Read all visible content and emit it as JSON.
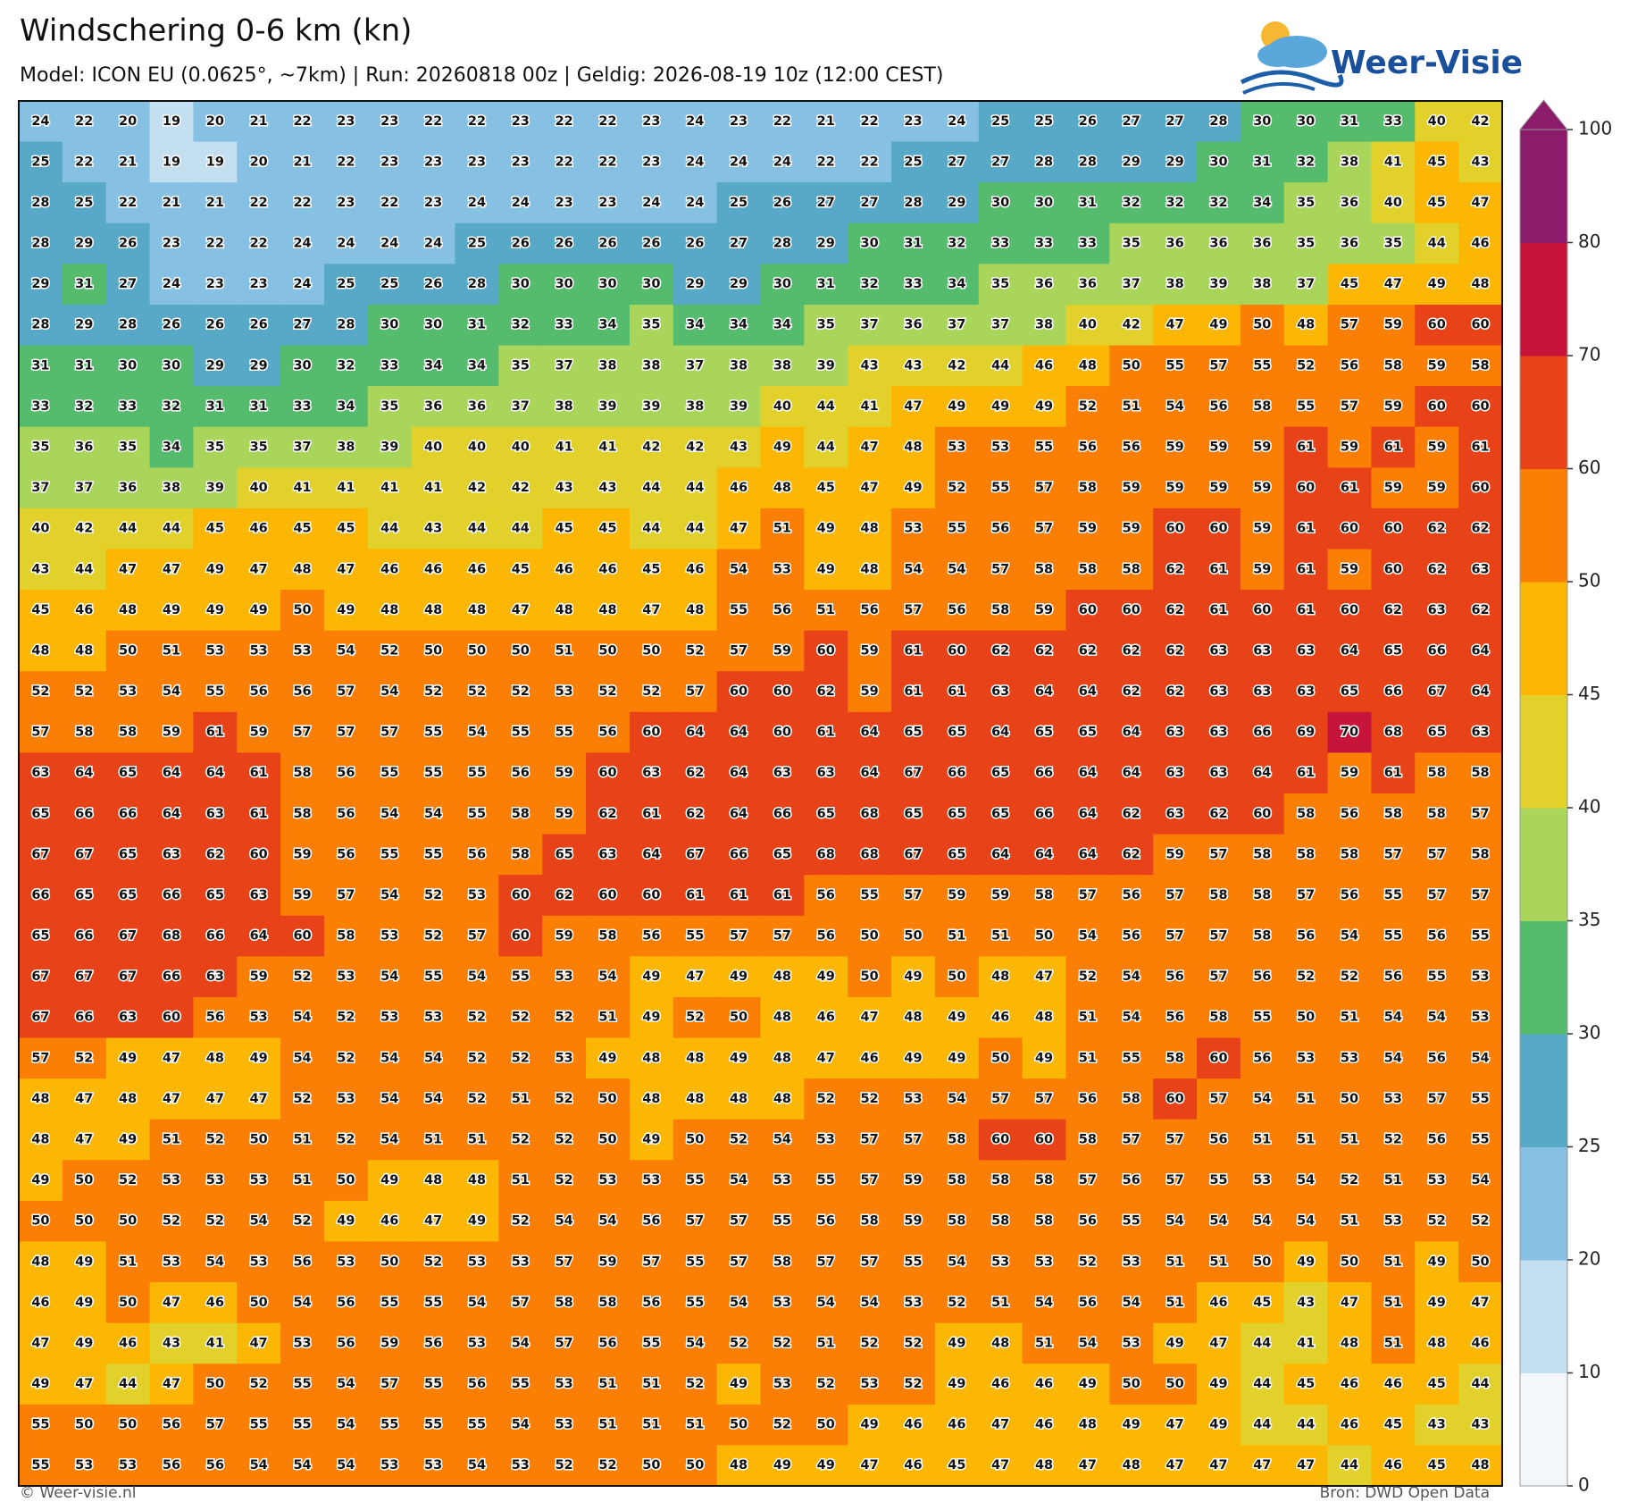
{
  "title": "Windschering 0-6 km (kn)",
  "subtitle": "Model: ICON EU (0.0625°, ~7km)  |  Run: 20260818 00z  |  Geldig: 2026-08-19 10z (12:00 CEST)",
  "logo": "Weer-Visie",
  "footer_left": "© Weer-visie.nl",
  "footer_right": "Bron: DWD Open Data",
  "colorbar": {
    "ticks": [
      0,
      10,
      20,
      25,
      30,
      35,
      40,
      45,
      50,
      60,
      70,
      80,
      100
    ],
    "colors": [
      "#f3f6fa",
      "#c4e0f0",
      "#86c1e4",
      "#58a8c8",
      "#55bc6e",
      "#a9d55b",
      "#e3d12b",
      "#fbb703",
      "#fb7e05",
      "#e84218",
      "#c7143b",
      "#8b1b6b"
    ]
  },
  "grid": [
    [
      24,
      22,
      20,
      19,
      20,
      21,
      22,
      23,
      23,
      22,
      22,
      23,
      22,
      22,
      23,
      24,
      23,
      22,
      21,
      22,
      23,
      24,
      25,
      25,
      26,
      27,
      27,
      28,
      30,
      30,
      31,
      33,
      40,
      42
    ],
    [
      25,
      22,
      21,
      19,
      19,
      20,
      21,
      22,
      23,
      23,
      23,
      23,
      22,
      22,
      23,
      24,
      24,
      24,
      22,
      22,
      25,
      27,
      27,
      28,
      28,
      29,
      29,
      30,
      31,
      32,
      38,
      41,
      45,
      43
    ],
    [
      28,
      25,
      22,
      21,
      21,
      22,
      22,
      23,
      22,
      23,
      24,
      24,
      23,
      23,
      24,
      24,
      25,
      26,
      27,
      27,
      28,
      29,
      30,
      30,
      31,
      32,
      32,
      32,
      34,
      35,
      36,
      40,
      45,
      47
    ],
    [
      28,
      29,
      26,
      23,
      22,
      22,
      24,
      24,
      24,
      24,
      25,
      26,
      26,
      26,
      26,
      26,
      27,
      28,
      29,
      30,
      31,
      32,
      33,
      33,
      33,
      35,
      36,
      36,
      36,
      35,
      36,
      35,
      44,
      46
    ],
    [
      29,
      31,
      27,
      24,
      23,
      23,
      24,
      25,
      25,
      26,
      28,
      30,
      30,
      30,
      30,
      29,
      29,
      30,
      31,
      32,
      33,
      34,
      35,
      36,
      36,
      37,
      38,
      39,
      38,
      37,
      45,
      47,
      49,
      48
    ],
    [
      28,
      29,
      28,
      26,
      26,
      26,
      27,
      28,
      30,
      30,
      31,
      32,
      33,
      34,
      35,
      34,
      34,
      34,
      35,
      37,
      36,
      37,
      37,
      38,
      40,
      42,
      47,
      49,
      50,
      48,
      57,
      59,
      60,
      60
    ],
    [
      31,
      31,
      30,
      30,
      29,
      29,
      30,
      32,
      33,
      34,
      34,
      35,
      37,
      38,
      38,
      37,
      38,
      38,
      39,
      43,
      43,
      42,
      44,
      46,
      48,
      50,
      55,
      57,
      55,
      52,
      56,
      58,
      59,
      58
    ],
    [
      33,
      32,
      33,
      32,
      31,
      31,
      33,
      34,
      35,
      36,
      36,
      37,
      38,
      39,
      39,
      38,
      39,
      40,
      44,
      41,
      47,
      49,
      49,
      49,
      52,
      51,
      54,
      56,
      58,
      55,
      57,
      59,
      60,
      60
    ],
    [
      35,
      36,
      35,
      34,
      35,
      35,
      37,
      38,
      39,
      40,
      40,
      40,
      41,
      41,
      42,
      42,
      43,
      49,
      44,
      47,
      48,
      53,
      53,
      55,
      56,
      56,
      59,
      59,
      59,
      61,
      59,
      61,
      59,
      61
    ],
    [
      37,
      37,
      36,
      38,
      39,
      40,
      41,
      41,
      41,
      41,
      42,
      42,
      43,
      43,
      44,
      44,
      46,
      48,
      45,
      47,
      49,
      52,
      55,
      57,
      58,
      59,
      59,
      59,
      59,
      60,
      61,
      59,
      59,
      60
    ],
    [
      40,
      42,
      44,
      44,
      45,
      46,
      45,
      45,
      44,
      43,
      44,
      44,
      45,
      45,
      44,
      44,
      47,
      51,
      49,
      48,
      53,
      55,
      56,
      57,
      59,
      59,
      60,
      60,
      59,
      61,
      60,
      60,
      62,
      62
    ],
    [
      43,
      44,
      47,
      47,
      49,
      47,
      48,
      47,
      46,
      46,
      46,
      45,
      46,
      46,
      45,
      46,
      54,
      53,
      49,
      48,
      54,
      54,
      57,
      58,
      58,
      58,
      62,
      61,
      59,
      61,
      59,
      60,
      62,
      63
    ],
    [
      45,
      46,
      48,
      49,
      49,
      49,
      50,
      49,
      48,
      48,
      48,
      47,
      48,
      48,
      47,
      48,
      55,
      56,
      51,
      56,
      57,
      56,
      58,
      59,
      60,
      60,
      62,
      61,
      60,
      61,
      60,
      62,
      63,
      62
    ],
    [
      48,
      48,
      50,
      51,
      53,
      53,
      53,
      54,
      52,
      50,
      50,
      50,
      51,
      50,
      50,
      52,
      57,
      59,
      60,
      59,
      61,
      60,
      62,
      62,
      62,
      62,
      62,
      63,
      63,
      63,
      64,
      65,
      66,
      64
    ],
    [
      52,
      52,
      53,
      54,
      55,
      56,
      56,
      57,
      54,
      52,
      52,
      52,
      53,
      52,
      52,
      57,
      60,
      60,
      62,
      59,
      61,
      61,
      63,
      64,
      64,
      62,
      62,
      63,
      63,
      63,
      65,
      66,
      67,
      64
    ],
    [
      57,
      58,
      58,
      59,
      61,
      59,
      57,
      57,
      57,
      55,
      54,
      55,
      55,
      56,
      60,
      64,
      64,
      60,
      61,
      64,
      65,
      65,
      64,
      65,
      65,
      64,
      63,
      63,
      66,
      69,
      70,
      68,
      65,
      63
    ],
    [
      63,
      64,
      65,
      64,
      64,
      61,
      58,
      56,
      55,
      55,
      55,
      56,
      59,
      60,
      63,
      62,
      64,
      63,
      63,
      64,
      67,
      66,
      65,
      66,
      64,
      64,
      63,
      63,
      64,
      61,
      59,
      61,
      58,
      58
    ],
    [
      65,
      66,
      66,
      64,
      63,
      61,
      58,
      56,
      54,
      54,
      55,
      58,
      59,
      62,
      61,
      62,
      64,
      66,
      65,
      68,
      65,
      65,
      65,
      66,
      64,
      62,
      63,
      62,
      60,
      58,
      56,
      58,
      58,
      57
    ],
    [
      67,
      67,
      65,
      63,
      62,
      60,
      59,
      56,
      55,
      55,
      56,
      58,
      65,
      63,
      64,
      67,
      66,
      65,
      68,
      68,
      67,
      65,
      64,
      64,
      64,
      62,
      59,
      57,
      58,
      58,
      58,
      57,
      57,
      58
    ],
    [
      66,
      65,
      65,
      66,
      65,
      63,
      59,
      57,
      54,
      52,
      53,
      60,
      62,
      60,
      60,
      61,
      61,
      61,
      56,
      55,
      57,
      59,
      59,
      58,
      57,
      56,
      57,
      58,
      58,
      57,
      56,
      55,
      57,
      57
    ],
    [
      65,
      66,
      67,
      68,
      66,
      64,
      60,
      58,
      53,
      52,
      57,
      60,
      59,
      58,
      56,
      55,
      57,
      57,
      56,
      50,
      50,
      51,
      51,
      50,
      54,
      56,
      57,
      57,
      58,
      56,
      54,
      55,
      56,
      55
    ],
    [
      67,
      67,
      67,
      66,
      63,
      59,
      52,
      53,
      54,
      55,
      54,
      55,
      53,
      54,
      49,
      47,
      49,
      48,
      49,
      50,
      49,
      50,
      48,
      47,
      52,
      54,
      56,
      57,
      56,
      52,
      52,
      56,
      55,
      53
    ],
    [
      67,
      66,
      63,
      60,
      56,
      53,
      54,
      52,
      53,
      53,
      52,
      52,
      52,
      51,
      49,
      52,
      50,
      48,
      46,
      47,
      48,
      49,
      46,
      48,
      51,
      54,
      56,
      58,
      55,
      50,
      51,
      54,
      54,
      53
    ],
    [
      57,
      52,
      49,
      47,
      48,
      49,
      54,
      52,
      54,
      54,
      52,
      52,
      53,
      49,
      48,
      48,
      49,
      48,
      47,
      46,
      49,
      49,
      50,
      49,
      51,
      55,
      58,
      60,
      56,
      53,
      53,
      54,
      56,
      54
    ],
    [
      48,
      47,
      48,
      47,
      47,
      47,
      52,
      53,
      54,
      54,
      52,
      51,
      52,
      50,
      48,
      48,
      48,
      48,
      52,
      52,
      53,
      54,
      57,
      57,
      56,
      58,
      60,
      57,
      54,
      51,
      50,
      53,
      57,
      55
    ],
    [
      48,
      47,
      49,
      51,
      52,
      50,
      51,
      52,
      54,
      51,
      51,
      52,
      52,
      50,
      49,
      50,
      52,
      54,
      53,
      57,
      57,
      58,
      60,
      60,
      58,
      57,
      57,
      56,
      51,
      51,
      51,
      52,
      56,
      55
    ],
    [
      49,
      50,
      52,
      53,
      53,
      53,
      51,
      50,
      49,
      48,
      48,
      51,
      52,
      53,
      53,
      55,
      54,
      53,
      55,
      57,
      59,
      58,
      58,
      58,
      57,
      56,
      57,
      55,
      53,
      54,
      52,
      51,
      53,
      54
    ],
    [
      50,
      50,
      50,
      52,
      52,
      54,
      52,
      49,
      46,
      47,
      49,
      52,
      54,
      54,
      56,
      57,
      57,
      55,
      56,
      58,
      59,
      58,
      58,
      58,
      56,
      55,
      54,
      54,
      54,
      54,
      51,
      53,
      52,
      52
    ],
    [
      48,
      49,
      51,
      53,
      54,
      53,
      56,
      53,
      50,
      52,
      53,
      53,
      57,
      59,
      57,
      55,
      57,
      58,
      57,
      57,
      55,
      54,
      53,
      53,
      52,
      53,
      51,
      51,
      50,
      49,
      50,
      51,
      49,
      50
    ],
    [
      46,
      49,
      50,
      47,
      46,
      50,
      54,
      56,
      55,
      55,
      54,
      57,
      58,
      58,
      56,
      55,
      54,
      53,
      54,
      54,
      53,
      52,
      51,
      54,
      56,
      54,
      51,
      46,
      45,
      43,
      47,
      51,
      49,
      47
    ],
    [
      47,
      49,
      46,
      43,
      41,
      47,
      53,
      56,
      59,
      56,
      53,
      54,
      57,
      56,
      55,
      54,
      52,
      52,
      51,
      52,
      52,
      49,
      48,
      51,
      54,
      53,
      49,
      47,
      44,
      41,
      48,
      51,
      48,
      46
    ],
    [
      49,
      47,
      44,
      47,
      50,
      52,
      55,
      54,
      57,
      55,
      56,
      55,
      53,
      51,
      51,
      52,
      49,
      53,
      52,
      53,
      52,
      49,
      46,
      46,
      49,
      50,
      50,
      49,
      44,
      45,
      46,
      46,
      45,
      44
    ],
    [
      55,
      50,
      50,
      56,
      57,
      55,
      55,
      54,
      55,
      55,
      55,
      54,
      53,
      51,
      51,
      51,
      50,
      52,
      50,
      49,
      46,
      46,
      47,
      46,
      48,
      49,
      47,
      49,
      44,
      44,
      46,
      45,
      43,
      43
    ],
    [
      55,
      53,
      53,
      56,
      56,
      54,
      54,
      54,
      53,
      53,
      54,
      53,
      52,
      52,
      50,
      50,
      48,
      49,
      49,
      47,
      46,
      45,
      47,
      48,
      47,
      48,
      47,
      47,
      47,
      47,
      44,
      46,
      45,
      48
    ]
  ]
}
